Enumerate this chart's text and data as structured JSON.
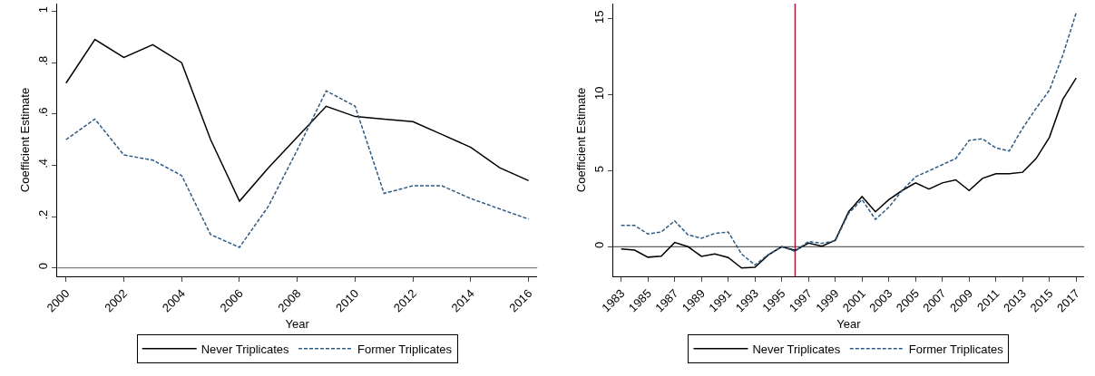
{
  "chart_data": [
    {
      "type": "line",
      "xlabel": "Year",
      "ylabel": "Coefficient Estimate",
      "x": [
        2000,
        2001,
        2002,
        2003,
        2004,
        2005,
        2006,
        2007,
        2008,
        2009,
        2010,
        2011,
        2012,
        2013,
        2014,
        2015,
        2016
      ],
      "series": [
        {
          "name": "Never Triplicates",
          "color": "#000000",
          "line_style": "solid",
          "values": [
            0.72,
            0.89,
            0.82,
            0.87,
            0.8,
            0.5,
            0.26,
            0.39,
            0.51,
            0.63,
            0.59,
            0.58,
            0.57,
            0.52,
            0.47,
            0.39,
            0.34
          ]
        },
        {
          "name": "Former Triplicates",
          "color": "#2f5a84",
          "line_style": "dashed",
          "values": [
            0.5,
            0.58,
            0.44,
            0.42,
            0.36,
            0.13,
            0.08,
            0.24,
            0.46,
            0.69,
            0.63,
            0.29,
            0.32,
            0.32,
            0.27,
            0.23,
            0.19
          ]
        }
      ],
      "xlim": [
        1999.7,
        2016.3
      ],
      "xticks": [
        2000,
        2002,
        2004,
        2006,
        2008,
        2010,
        2012,
        2014,
        2016
      ],
      "ylim": [
        -0.033,
        1.03
      ],
      "yticks": [
        {
          "value": 0,
          "label": "0"
        },
        {
          "value": 0.2,
          "label": ".2"
        },
        {
          "value": 0.4,
          "label": ".4"
        },
        {
          "value": 0.6,
          "label": ".6"
        },
        {
          "value": 0.8,
          "label": ".8"
        },
        {
          "value": 1,
          "label": "1"
        }
      ],
      "ref_lines": [
        {
          "axis": "y",
          "value": 0,
          "color": "#808080"
        }
      ],
      "grid": false,
      "legend": "bottom"
    },
    {
      "type": "line",
      "xlabel": "Year",
      "ylabel": "Coefficient Estimate",
      "x": [
        1983,
        1984,
        1985,
        1986,
        1987,
        1988,
        1989,
        1990,
        1991,
        1992,
        1993,
        1994,
        1995,
        1996,
        1997,
        1998,
        1999,
        2000,
        2001,
        2002,
        2003,
        2004,
        2005,
        2006,
        2007,
        2008,
        2009,
        2010,
        2011,
        2012,
        2013,
        2014,
        2015,
        2016,
        2017
      ],
      "series": [
        {
          "name": "Never Triplicates",
          "color": "#000000",
          "line_style": "solid",
          "values": [
            -0.15,
            -0.22,
            -0.69,
            -0.63,
            0.28,
            0,
            -0.63,
            -0.48,
            -0.71,
            -1.4,
            -1.35,
            -0.54,
            0,
            -0.24,
            0.24,
            0.04,
            0.43,
            2.3,
            3.3,
            2.3,
            3.1,
            3.7,
            4.2,
            3.8,
            4.2,
            4.4,
            3.7,
            4.5,
            4.8,
            4.8,
            4.9,
            5.8,
            7.2,
            9.7,
            11.1
          ]
        },
        {
          "name": "Former Triplicates",
          "color": "#2f5a84",
          "line_style": "dashed",
          "values": [
            1.4,
            1.4,
            0.84,
            0.97,
            1.7,
            0.78,
            0.56,
            0.87,
            0.97,
            -0.48,
            -1.2,
            -0.52,
            0,
            -0.3,
            0.35,
            0.22,
            0.39,
            2.2,
            3.1,
            1.8,
            2.6,
            3.7,
            4.6,
            5.0,
            5.4,
            5.8,
            7.0,
            7.1,
            6.5,
            6.3,
            7.8,
            9.1,
            10.3,
            12.6,
            15.4
          ]
        }
      ],
      "xlim": [
        1982.4,
        2017.6
      ],
      "xticks": [
        1983,
        1985,
        1987,
        1989,
        1991,
        1993,
        1995,
        1997,
        1999,
        2001,
        2003,
        2005,
        2007,
        2009,
        2011,
        2013,
        2015,
        2017
      ],
      "ylim": [
        -1.95,
        16
      ],
      "yticks": [
        0,
        5,
        10,
        15
      ],
      "ref_lines": [
        {
          "axis": "y",
          "value": 0,
          "color": "#606060"
        },
        {
          "axis": "x",
          "value": 1996,
          "color": "#b5163b"
        }
      ],
      "grid": false,
      "legend": "bottom"
    }
  ]
}
